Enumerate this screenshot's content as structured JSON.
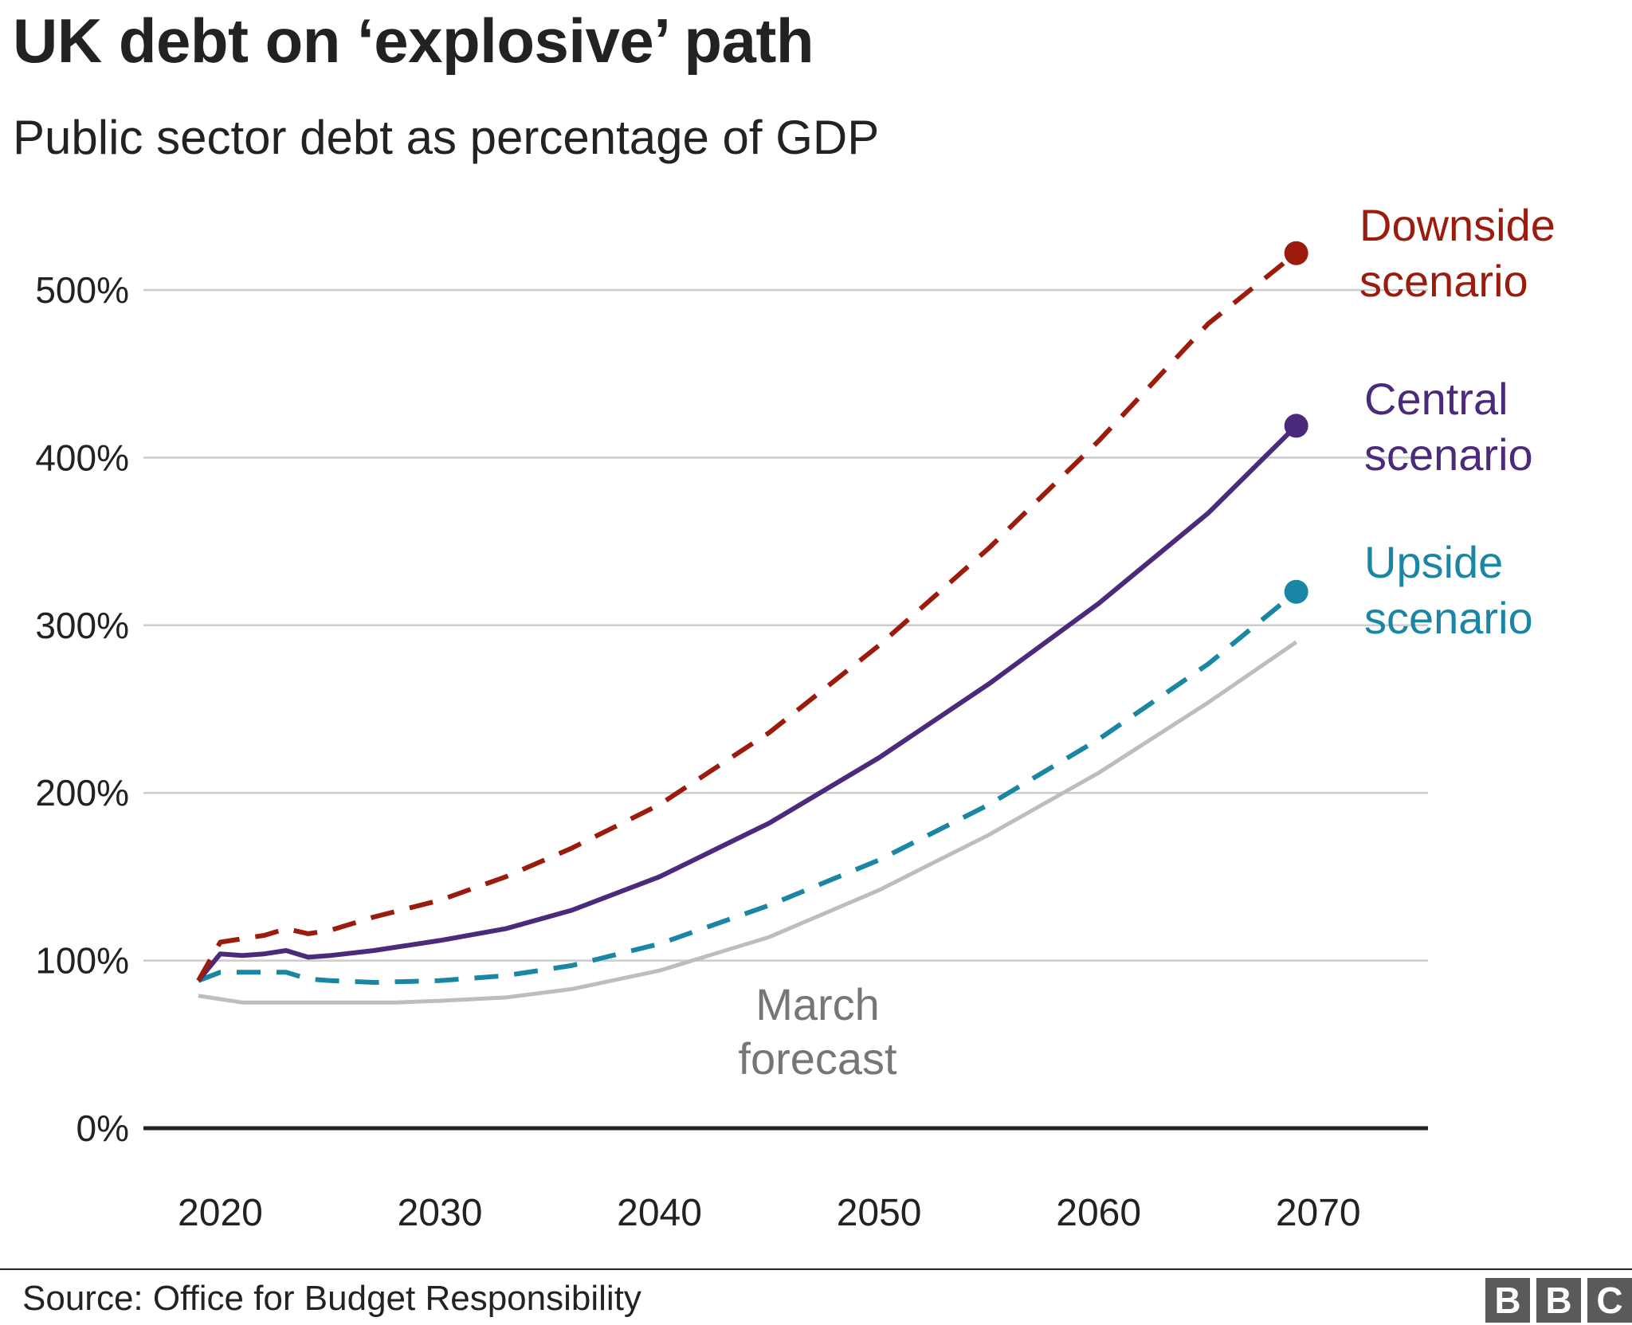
{
  "title": "UK debt on ‘explosive’ path",
  "subtitle": "Public sector debt as percentage of GDP",
  "source": "Source: Office for Budget Responsibility",
  "logo": [
    "B",
    "B",
    "C"
  ],
  "colors": {
    "downside": "#9b1b0d",
    "central": "#4b2a7b",
    "upside": "#1a86a3",
    "march": "#bdbdbd",
    "march_label": "#767676",
    "grid": "#cccccc",
    "axis": "#222222"
  },
  "chart_data": {
    "type": "line",
    "xlim": [
      2016.5,
      2075
    ],
    "ylim": [
      0,
      500
    ],
    "xticks": [
      2020,
      2030,
      2040,
      2050,
      2060,
      2070
    ],
    "xtick_labels": [
      "2020",
      "2030",
      "2040",
      "2050",
      "2060",
      "2070"
    ],
    "yticks": [
      0,
      100,
      200,
      300,
      400,
      500
    ],
    "ytick_labels": [
      "0%",
      "100%",
      "200%",
      "300%",
      "400%",
      "500%"
    ],
    "grid": true,
    "series": [
      {
        "key": "downside",
        "name": "Downside scenario",
        "label_lines": [
          "Downside",
          "scenario"
        ],
        "style": "dashed",
        "end_marker": true,
        "x": [
          2019,
          2020,
          2021,
          2022,
          2023,
          2024,
          2025,
          2027,
          2030,
          2033,
          2036,
          2040,
          2045,
          2050,
          2055,
          2060,
          2065,
          2069
        ],
        "y": [
          88,
          111,
          113,
          115,
          119,
          116,
          118,
          126,
          136,
          150,
          167,
          193,
          236,
          288,
          346,
          410,
          480,
          522
        ]
      },
      {
        "key": "central",
        "name": "Central scenario",
        "label_lines": [
          "Central",
          "scenario"
        ],
        "style": "solid",
        "end_marker": true,
        "x": [
          2019,
          2020,
          2021,
          2022,
          2023,
          2024,
          2025,
          2027,
          2030,
          2033,
          2036,
          2040,
          2045,
          2050,
          2055,
          2060,
          2065,
          2069
        ],
        "y": [
          88,
          104,
          103,
          104,
          106,
          102,
          103,
          106,
          112,
          119,
          130,
          150,
          182,
          221,
          265,
          313,
          367,
          419
        ]
      },
      {
        "key": "upside",
        "name": "Upside scenario",
        "label_lines": [
          "Upside",
          "scenario"
        ],
        "style": "dashed",
        "end_marker": true,
        "x": [
          2019,
          2020,
          2021,
          2022,
          2023,
          2024,
          2025,
          2027,
          2030,
          2033,
          2036,
          2040,
          2045,
          2050,
          2055,
          2060,
          2065,
          2069
        ],
        "y": [
          88,
          93,
          93,
          93,
          93,
          89,
          88,
          87,
          88,
          91,
          97,
          110,
          133,
          160,
          193,
          232,
          277,
          320
        ]
      },
      {
        "key": "march",
        "name": "March forecast",
        "label_lines": [
          "March",
          "forecast"
        ],
        "style": "solid",
        "end_marker": false,
        "x": [
          2019,
          2020,
          2021,
          2022,
          2023,
          2024,
          2026,
          2028,
          2030,
          2033,
          2036,
          2040,
          2045,
          2050,
          2055,
          2060,
          2065,
          2069
        ],
        "y": [
          79,
          77,
          75,
          75,
          75,
          75,
          75,
          75,
          76,
          78,
          83,
          94,
          114,
          142,
          175,
          212,
          254,
          290
        ]
      }
    ]
  }
}
